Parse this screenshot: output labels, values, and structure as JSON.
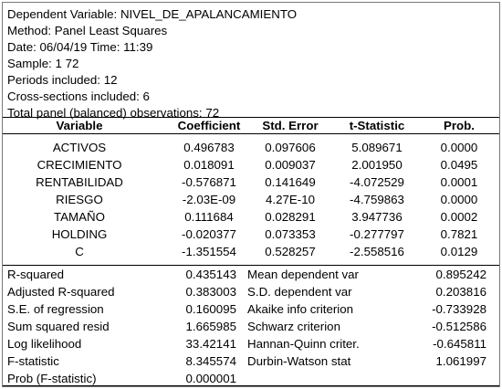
{
  "header": {
    "lines": [
      "Dependent Variable: NIVEL_DE_APALANCAMIENTO",
      "Method: Panel Least Squares",
      "Date: 06/04/19   Time: 11:39",
      "Sample: 1 72",
      "Periods included: 12",
      "Cross-sections included: 6",
      "Total panel (balanced) observations: 72"
    ]
  },
  "table": {
    "columns": [
      "Variable",
      "Coefficient",
      "Std. Error",
      "t-Statistic",
      "Prob."
    ],
    "rows": [
      {
        "variable": "ACTIVOS",
        "coefficient": "0.496783",
        "std_error": "0.097606",
        "t_statistic": "5.089671",
        "prob": "0.0000"
      },
      {
        "variable": "CRECIMIENTO",
        "coefficient": "0.018091",
        "std_error": "0.009037",
        "t_statistic": "2.001950",
        "prob": "0.0495"
      },
      {
        "variable": "RENTABILIDAD",
        "coefficient": "-0.576871",
        "std_error": "0.141649",
        "t_statistic": "-4.072529",
        "prob": "0.0001"
      },
      {
        "variable": "RIESGO",
        "coefficient": "-2.03E-09",
        "std_error": "4.27E-10",
        "t_statistic": "-4.759863",
        "prob": "0.0000"
      },
      {
        "variable": "TAMAÑO",
        "coefficient": "0.111684",
        "std_error": "0.028291",
        "t_statistic": "3.947736",
        "prob": "0.0002"
      },
      {
        "variable": "HOLDING",
        "coefficient": "-0.020377",
        "std_error": "0.073353",
        "t_statistic": "-0.277797",
        "prob": "0.7821"
      },
      {
        "variable": "C",
        "coefficient": "-1.351554",
        "std_error": "0.528257",
        "t_statistic": "-2.558516",
        "prob": "0.0129"
      }
    ]
  },
  "stats": [
    {
      "label": "R-squared",
      "value": "0.435143",
      "label2": "Mean dependent var",
      "value2": "0.895242"
    },
    {
      "label": "Adjusted R-squared",
      "value": "0.383003",
      "label2": "S.D. dependent var",
      "value2": "0.203816"
    },
    {
      "label": "S.E. of regression",
      "value": "0.160095",
      "label2": "Akaike info criterion",
      "value2": "-0.733928"
    },
    {
      "label": "Sum squared resid",
      "value": "1.665985",
      "label2": "Schwarz criterion",
      "value2": "-0.512586"
    },
    {
      "label": "Log likelihood",
      "value": "33.42141",
      "label2": "Hannan-Quinn criter.",
      "value2": "-0.645811"
    },
    {
      "label": "F-statistic",
      "value": "8.345574",
      "label2": "Durbin-Watson stat",
      "value2": "1.061997"
    },
    {
      "label": "Prob (F-statistic)",
      "value": "0.000001",
      "label2": "",
      "value2": ""
    }
  ]
}
